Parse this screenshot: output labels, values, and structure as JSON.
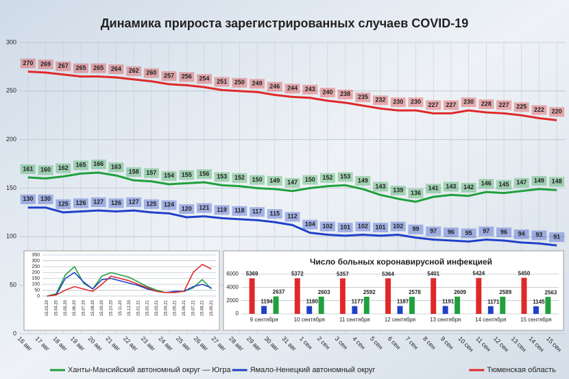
{
  "chart_data": [
    {
      "type": "line",
      "title": "Динамика прироста зарегистрированных случаев COVID-19",
      "categories": [
        "16 авг",
        "17 авг",
        "18 авг",
        "19 авг",
        "20 авг",
        "21 авг",
        "22 авг",
        "23 авг",
        "24 авг",
        "25 авг",
        "26 авг",
        "27 авг",
        "28 авг",
        "29 авг",
        "30 авг",
        "31 авг",
        "1 сен",
        "2 сен",
        "3 сен",
        "4 сен",
        "5 сен",
        "6 сен",
        "7 сен",
        "8 сен",
        "9 сен",
        "10 сен",
        "11 сен",
        "12 сен",
        "13 сен",
        "14 сен",
        "15 сен"
      ],
      "series": [
        {
          "name": "Ханты-Мансийский автономный округ — Югра",
          "color": "#1fa03c",
          "values": [
            161,
            160,
            162,
            165,
            166,
            163,
            158,
            157,
            154,
            155,
            156,
            153,
            152,
            150,
            149,
            147,
            150,
            152,
            153,
            149,
            143,
            139,
            136,
            141,
            143,
            142,
            146,
            145,
            147,
            149,
            148
          ]
        },
        {
          "name": "Ямало-Ненецкий автономный округ",
          "color": "#2040c8",
          "values": [
            130,
            130,
            125,
            126,
            127,
            126,
            127,
            125,
            124,
            120,
            121,
            119,
            118,
            117,
            115,
            112,
            104,
            102,
            101,
            102,
            101,
            102,
            99,
            97,
            96,
            95,
            97,
            96,
            94,
            93,
            91
          ]
        },
        {
          "name": "Тюменская область",
          "color": "#e02828",
          "values": [
            270,
            269,
            267,
            265,
            265,
            264,
            262,
            260,
            257,
            256,
            254,
            251,
            250,
            249,
            246,
            244,
            243,
            240,
            238,
            235,
            232,
            230,
            230,
            227,
            227,
            230,
            228,
            227,
            225,
            222,
            220
          ]
        }
      ],
      "ylim": [
        0,
        300
      ],
      "yticks": [
        0,
        50,
        100,
        150,
        200,
        250,
        300
      ],
      "grid": true,
      "data_labels": true,
      "legend": "bottom"
    },
    {
      "type": "line",
      "categories": [
        "15.03.20",
        "15.04.20",
        "15.05.20",
        "15.06.20",
        "15.07.20",
        "15.08.20",
        "15.09.20",
        "15.10.20",
        "15.11.20",
        "15.12.20",
        "15.01.21",
        "15.02.21",
        "15.03.21",
        "15.04.21",
        "15.05.21",
        "15.06.21",
        "15.07.21",
        "15.08.21",
        "15.09.21"
      ],
      "series": [
        {
          "color": "#1fa03c",
          "values": [
            0,
            20,
            180,
            250,
            110,
            60,
            170,
            200,
            180,
            160,
            120,
            80,
            50,
            30,
            40,
            40,
            70,
            140,
            60
          ]
        },
        {
          "color": "#2040c8",
          "values": [
            0,
            10,
            150,
            200,
            120,
            60,
            140,
            150,
            130,
            110,
            90,
            60,
            40,
            30,
            40,
            40,
            80,
            100,
            70
          ]
        },
        {
          "color": "#e02828",
          "values": [
            0,
            10,
            50,
            80,
            60,
            40,
            100,
            170,
            150,
            130,
            100,
            70,
            40,
            30,
            30,
            40,
            200,
            270,
            230
          ]
        }
      ],
      "ylim": [
        0,
        350
      ],
      "yticks": [
        0,
        50,
        100,
        150,
        200,
        250,
        300,
        350
      ],
      "grid": true
    },
    {
      "type": "bar",
      "title": "Число больных коронавирусной инфекцией",
      "categories": [
        "9 сентября",
        "10 сентября",
        "11 сентября",
        "12 сентября",
        "13 сентября",
        "14 сентября",
        "15 сентября"
      ],
      "series": [
        {
          "color": "#e02828",
          "values": [
            5369,
            5372,
            5357,
            5364,
            5401,
            5424,
            5450
          ]
        },
        {
          "color": "#2040c8",
          "values": [
            1194,
            1180,
            1177,
            1187,
            1191,
            1171,
            1145
          ]
        },
        {
          "color": "#1fa03c",
          "values": [
            2637,
            2603,
            2592,
            2578,
            2609,
            2589,
            2563
          ]
        }
      ],
      "ylim": [
        0,
        6000
      ],
      "yticks": [
        0,
        2000,
        4000,
        6000
      ],
      "grid": true,
      "data_labels": true
    }
  ]
}
